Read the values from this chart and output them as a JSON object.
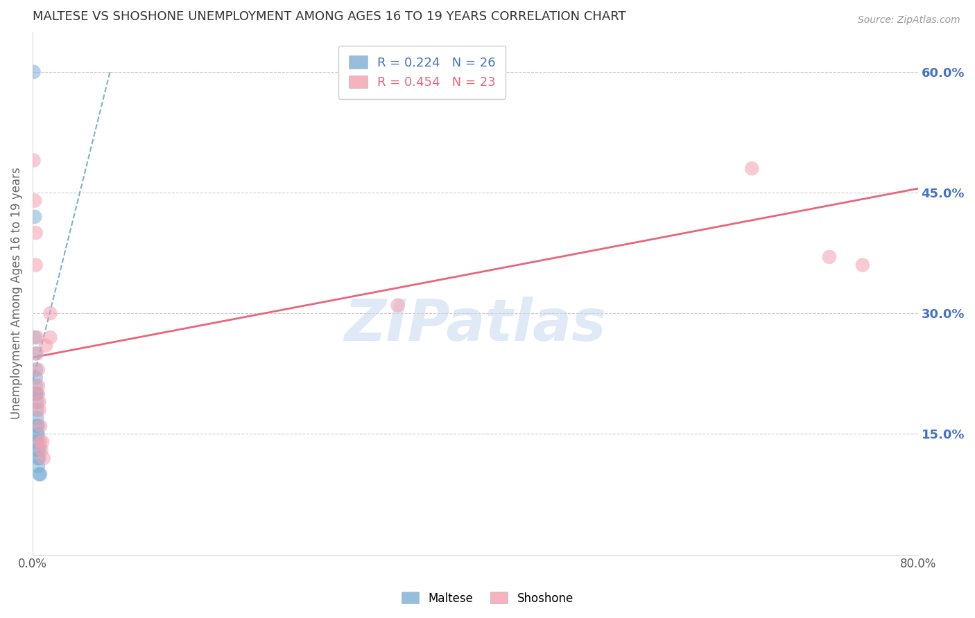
{
  "title": "MALTESE VS SHOSHONE UNEMPLOYMENT AMONG AGES 16 TO 19 YEARS CORRELATION CHART",
  "source": "Source: ZipAtlas.com",
  "ylabel": "Unemployment Among Ages 16 to 19 years",
  "xlim": [
    0,
    0.8
  ],
  "ylim": [
    0,
    0.65
  ],
  "yticks_right": [
    0.15,
    0.3,
    0.45,
    0.6
  ],
  "background_color": "#ffffff",
  "grid_color": "#cccccc",
  "title_color": "#333333",
  "right_tick_color": "#4472c4",
  "maltese_color": "#7bafd4",
  "shoshone_color": "#f4a0b0",
  "shoshone_line_color": "#e8657a",
  "maltese_line_color": "#7bafd4",
  "legend_R_maltese": "0.224",
  "legend_N_maltese": "26",
  "legend_R_shoshone": "0.454",
  "legend_N_shoshone": "23",
  "legend_label_maltese": "Maltese",
  "legend_label_shoshone": "Shoshone",
  "maltese_x": [
    0.001,
    0.002,
    0.002,
    0.003,
    0.003,
    0.003,
    0.003,
    0.003,
    0.003,
    0.004,
    0.004,
    0.004,
    0.004,
    0.004,
    0.004,
    0.004,
    0.005,
    0.005,
    0.005,
    0.005,
    0.005,
    0.005,
    0.006,
    0.006,
    0.006,
    0.007
  ],
  "maltese_y": [
    0.6,
    0.42,
    0.27,
    0.25,
    0.23,
    0.22,
    0.21,
    0.2,
    0.2,
    0.2,
    0.19,
    0.18,
    0.17,
    0.16,
    0.15,
    0.14,
    0.16,
    0.15,
    0.14,
    0.13,
    0.12,
    0.11,
    0.13,
    0.12,
    0.1,
    0.1
  ],
  "shoshone_x": [
    0.001,
    0.002,
    0.003,
    0.003,
    0.004,
    0.004,
    0.005,
    0.005,
    0.005,
    0.006,
    0.006,
    0.007,
    0.007,
    0.008,
    0.009,
    0.01,
    0.012,
    0.016,
    0.016,
    0.33,
    0.65,
    0.72,
    0.75
  ],
  "shoshone_y": [
    0.49,
    0.44,
    0.4,
    0.36,
    0.27,
    0.25,
    0.23,
    0.21,
    0.2,
    0.19,
    0.18,
    0.16,
    0.14,
    0.13,
    0.14,
    0.12,
    0.26,
    0.3,
    0.27,
    0.31,
    0.48,
    0.37,
    0.36
  ],
  "maltese_trend_x": [
    0.0,
    0.07
  ],
  "maltese_trend_y": [
    0.215,
    0.6
  ],
  "shoshone_trend_x": [
    0.0,
    0.8
  ],
  "shoshone_trend_y": [
    0.245,
    0.455
  ],
  "watermark_text": "ZIPatlas",
  "watermark_color": "#c8d8f0"
}
